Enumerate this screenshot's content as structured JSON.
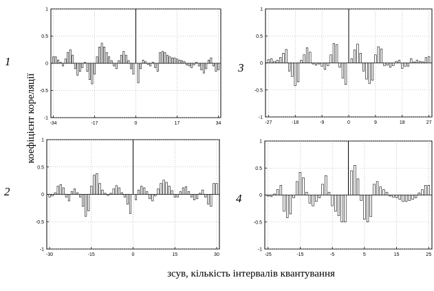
{
  "figure": {
    "ylabel": "коефіцієнт кореляції",
    "xlabel": "зсув, кількість інтервалів квантування"
  },
  "chart_data": [
    {
      "type": "bar",
      "panel_label": "1",
      "xlim": [
        -35,
        35
      ],
      "ylim": [
        -1,
        1
      ],
      "xticks": [
        -34,
        -17,
        0,
        17,
        34
      ],
      "yticks": [
        1,
        0.5,
        0,
        -0.5,
        -1
      ],
      "grid": true,
      "x": [
        -34,
        -33,
        -32,
        -31,
        -30,
        -29,
        -28,
        -27,
        -26,
        -25,
        -24,
        -23,
        -22,
        -21,
        -20,
        -19,
        -18,
        -17,
        -16,
        -15,
        -14,
        -13,
        -12,
        -11,
        -10,
        -9,
        -8,
        -7,
        -6,
        -5,
        -4,
        -3,
        -2,
        -1,
        0,
        1,
        2,
        3,
        4,
        5,
        6,
        7,
        8,
        9,
        10,
        11,
        12,
        13,
        14,
        15,
        16,
        17,
        18,
        19,
        20,
        21,
        22,
        23,
        24,
        25,
        26,
        27,
        28,
        29,
        30,
        31,
        32,
        33,
        34
      ],
      "values": [
        0.12,
        0.12,
        0.06,
        0.02,
        -0.05,
        0.08,
        0.2,
        0.25,
        0.15,
        -0.1,
        -0.22,
        -0.15,
        -0.08,
        0.02,
        -0.15,
        -0.3,
        -0.38,
        -0.2,
        0.12,
        0.3,
        0.37,
        0.3,
        0.2,
        0.12,
        0.05,
        -0.05,
        -0.1,
        0.05,
        0.15,
        0.22,
        0.15,
        0.05,
        -0.1,
        -0.2,
        1,
        -0.36,
        -0.1,
        0.06,
        0.03,
        -0.02,
        -0.05,
        0.02,
        -0.08,
        -0.15,
        0.2,
        0.22,
        0.2,
        0.15,
        0.12,
        0.1,
        0.1,
        0.08,
        0.06,
        0.05,
        0.03,
        -0.03,
        -0.05,
        -0.08,
        -0.03,
        0.02,
        -0.05,
        -0.12,
        -0.18,
        -0.1,
        0.06,
        0.1,
        -0.05,
        -0.15,
        -0.12
      ]
    },
    {
      "type": "bar",
      "panel_label": "2",
      "xlim": [
        -31,
        31
      ],
      "ylim": [
        -1,
        1
      ],
      "xticks": [
        -30,
        -15,
        0,
        15,
        30
      ],
      "yticks": [
        1,
        0.5,
        0,
        -0.5,
        -1
      ],
      "grid": true,
      "x": [
        -30,
        -29,
        -28,
        -27,
        -26,
        -25,
        -24,
        -23,
        -22,
        -21,
        -20,
        -19,
        -18,
        -17,
        -16,
        -15,
        -14,
        -13,
        -12,
        -11,
        -10,
        -9,
        -8,
        -7,
        -6,
        -5,
        -4,
        -3,
        -2,
        -1,
        0,
        1,
        2,
        3,
        4,
        5,
        6,
        7,
        8,
        9,
        10,
        11,
        12,
        13,
        14,
        15,
        16,
        17,
        18,
        19,
        20,
        21,
        22,
        23,
        24,
        25,
        26,
        27,
        28,
        29,
        30
      ],
      "values": [
        -0.05,
        -0.03,
        0.03,
        0.15,
        0.18,
        0.12,
        -0.05,
        -0.12,
        0.05,
        0.1,
        0.03,
        -0.05,
        -0.22,
        -0.4,
        -0.3,
        0.15,
        0.35,
        0.38,
        0.2,
        0.08,
        0.02,
        -0.02,
        0.02,
        0.1,
        0.16,
        0.12,
        0.03,
        -0.05,
        -0.18,
        -0.35,
        1,
        -0.1,
        0.08,
        0.15,
        0.12,
        0.05,
        -0.08,
        -0.12,
        -0.03,
        0.1,
        0.2,
        0.26,
        0.22,
        0.15,
        0.07,
        -0.05,
        -0.05,
        0.05,
        0.12,
        0.14,
        0.05,
        -0.05,
        -0.1,
        -0.08,
        0.02,
        0.08,
        -0.05,
        -0.18,
        -0.22,
        0.2,
        0.2
      ]
    },
    {
      "type": "bar",
      "panel_label": "3",
      "xlim": [
        -28,
        28
      ],
      "ylim": [
        -1,
        1
      ],
      "xticks": [
        -27,
        -18,
        -9,
        0,
        9,
        18,
        27
      ],
      "yticks": [
        1,
        0.5,
        0,
        -0.5,
        -1
      ],
      "grid": true,
      "x": [
        -27,
        -26,
        -25,
        -24,
        -23,
        -22,
        -21,
        -20,
        -19,
        -18,
        -17,
        -16,
        -15,
        -14,
        -13,
        -12,
        -11,
        -10,
        -9,
        -8,
        -7,
        -6,
        -5,
        -4,
        -3,
        -2,
        -1,
        0,
        1,
        2,
        3,
        4,
        5,
        6,
        7,
        8,
        9,
        10,
        11,
        12,
        13,
        14,
        15,
        16,
        17,
        18,
        19,
        20,
        21,
        22,
        23,
        24,
        25,
        26,
        27
      ],
      "values": [
        0.06,
        0.08,
        0.03,
        0.05,
        0.1,
        0.18,
        0.25,
        -0.15,
        -0.25,
        -0.42,
        -0.35,
        0.05,
        0.15,
        0.28,
        0.2,
        -0.02,
        -0.04,
        -0.02,
        -0.06,
        -0.12,
        -0.05,
        0.15,
        0.36,
        0.34,
        -0.08,
        -0.28,
        -0.4,
        1,
        0.08,
        0.24,
        0.35,
        0.18,
        -0.15,
        -0.3,
        -0.38,
        -0.32,
        0.15,
        0.3,
        0.26,
        -0.05,
        -0.04,
        -0.08,
        -0.05,
        0.03,
        0.05,
        -0.1,
        -0.06,
        -0.06,
        0.08,
        0.02,
        0.05,
        0.03,
        0.02,
        0.1,
        0.12
      ]
    },
    {
      "type": "bar",
      "panel_label": "4",
      "xlim": [
        -26,
        26
      ],
      "ylim": [
        -1,
        1
      ],
      "xticks": [
        -25,
        -15,
        -5,
        5,
        15,
        25
      ],
      "yticks": [
        1,
        0.5,
        0,
        -0.5,
        -1
      ],
      "grid": true,
      "x": [
        -25,
        -24,
        -23,
        -22,
        -21,
        -20,
        -19,
        -18,
        -17,
        -16,
        -15,
        -14,
        -13,
        -12,
        -11,
        -10,
        -9,
        -8,
        -7,
        -6,
        -5,
        -4,
        -3,
        -2,
        -1,
        0,
        1,
        2,
        3,
        4,
        5,
        6,
        7,
        8,
        9,
        10,
        11,
        12,
        13,
        14,
        15,
        16,
        17,
        18,
        19,
        20,
        21,
        22,
        23,
        24,
        25
      ],
      "values": [
        -0.02,
        -0.03,
        0.02,
        0.1,
        0.18,
        -0.3,
        -0.42,
        -0.35,
        -0.05,
        0.25,
        0.42,
        0.32,
        0.05,
        -0.15,
        -0.2,
        -0.12,
        -0.05,
        0.2,
        0.36,
        0.05,
        -0.2,
        -0.3,
        -0.38,
        -0.5,
        -0.5,
        1,
        0.45,
        0.55,
        0.3,
        -0.1,
        -0.45,
        -0.5,
        -0.4,
        0.2,
        0.25,
        0.15,
        0.1,
        0.05,
        -0.02,
        -0.04,
        -0.05,
        -0.08,
        -0.12,
        -0.12,
        -0.1,
        -0.08,
        -0.05,
        0.04,
        0.1,
        0.18,
        0.18
      ]
    }
  ]
}
